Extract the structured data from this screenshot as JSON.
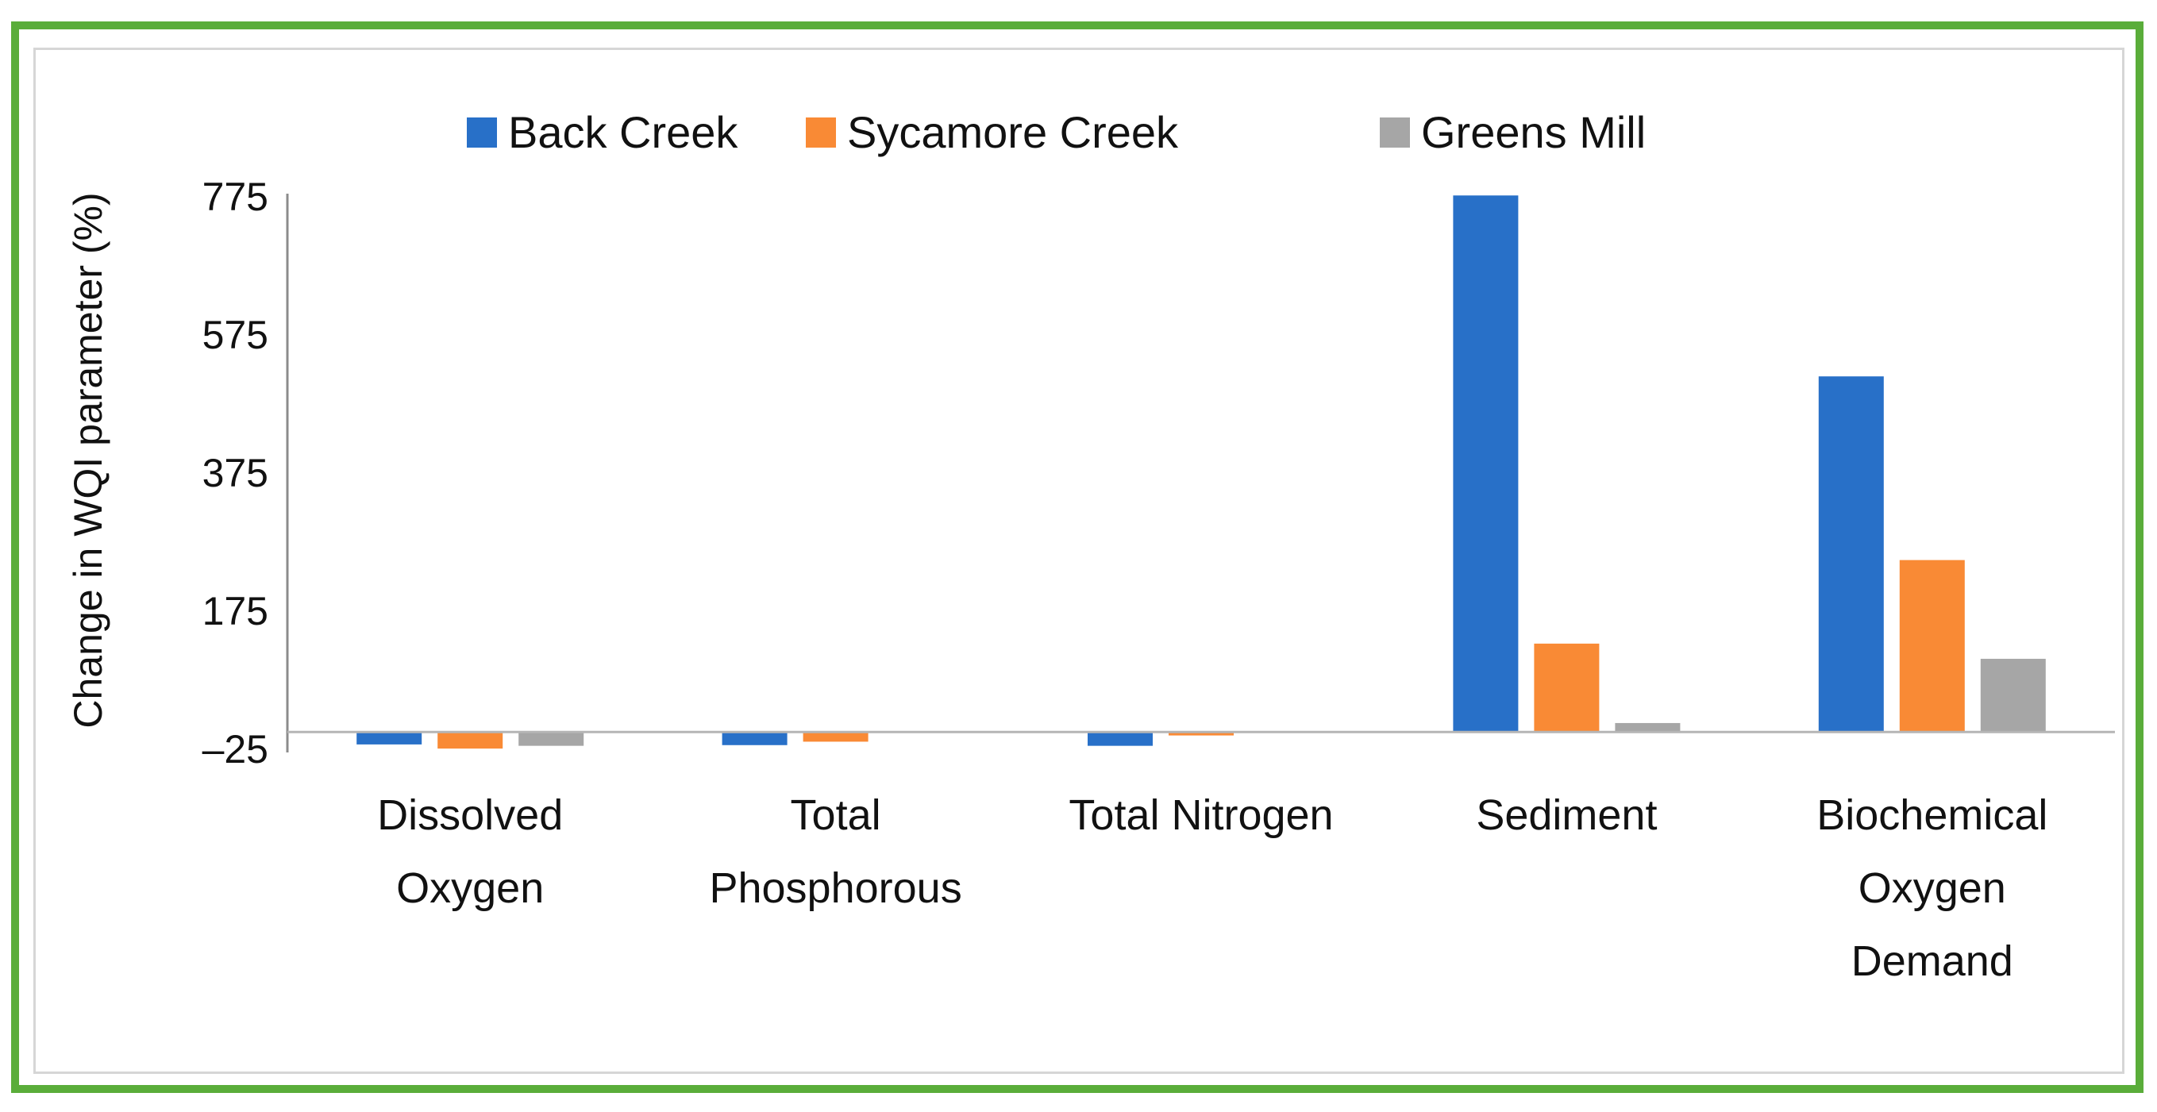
{
  "chart_data": {
    "type": "bar",
    "categories": [
      [
        "Dissolved",
        "Oxygen"
      ],
      [
        "Total",
        "Phosphorous"
      ],
      [
        "Total Nitrogen"
      ],
      [
        "Sediment"
      ],
      [
        "Biochemical",
        "Oxygen",
        "Demand"
      ]
    ],
    "series": [
      {
        "name": "Back Creek",
        "color": "#2870c8",
        "values": [
          -18,
          -19,
          -20,
          777,
          515
        ]
      },
      {
        "name": "Sycamore Creek",
        "color": "#f98a35",
        "values": [
          -24,
          -14,
          -5,
          128,
          249
        ]
      },
      {
        "name": "Greens Mill",
        "color": "#a6a6a6",
        "values": [
          -20,
          0,
          0,
          13,
          106
        ]
      }
    ],
    "title": "",
    "xlabel": "",
    "ylabel": "Change in WQI parameter (%)",
    "ylim": [
      -25,
      775
    ],
    "yticks": [
      -25,
      175,
      375,
      575,
      775
    ],
    "ytick_labels": [
      "–25",
      "175",
      "375",
      "575",
      "775"
    ],
    "grid": false,
    "legend_position": "top"
  }
}
